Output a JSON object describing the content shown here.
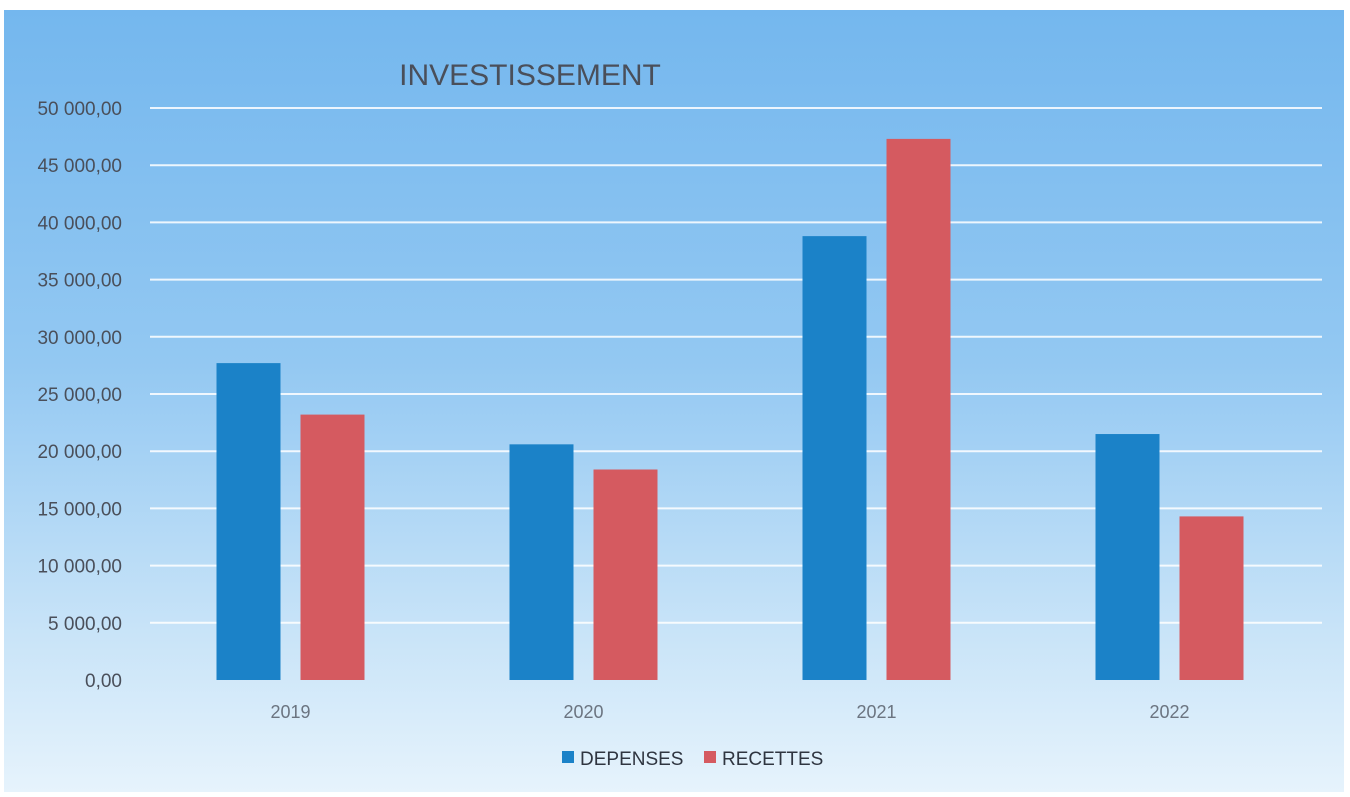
{
  "chart_data": {
    "type": "bar",
    "title": "INVESTISSEMENT",
    "xlabel": "",
    "ylabel": "",
    "categories": [
      "2019",
      "2020",
      "2021",
      "2022"
    ],
    "series": [
      {
        "name": "DEPENSES",
        "color": "#1b82c8",
        "values": [
          27700,
          20600,
          38800,
          21500
        ]
      },
      {
        "name": "RECETTES",
        "color": "#d55a60",
        "values": [
          23200,
          18400,
          47300,
          14300
        ]
      }
    ],
    "ylim": [
      0,
      50000
    ],
    "yticks": [
      {
        "value": 0,
        "label": "0,00"
      },
      {
        "value": 5000,
        "label": "5 000,00"
      },
      {
        "value": 10000,
        "label": "10 000,00"
      },
      {
        "value": 15000,
        "label": "15 000,00"
      },
      {
        "value": 20000,
        "label": "20 000,00"
      },
      {
        "value": 25000,
        "label": "25 000,00"
      },
      {
        "value": 30000,
        "label": "30 000,00"
      },
      {
        "value": 35000,
        "label": "35 000,00"
      },
      {
        "value": 40000,
        "label": "40 000,00"
      },
      {
        "value": 45000,
        "label": "45 000,00"
      },
      {
        "value": 50000,
        "label": "50 000,00"
      }
    ],
    "grid": true,
    "legend": "bottom-center"
  }
}
